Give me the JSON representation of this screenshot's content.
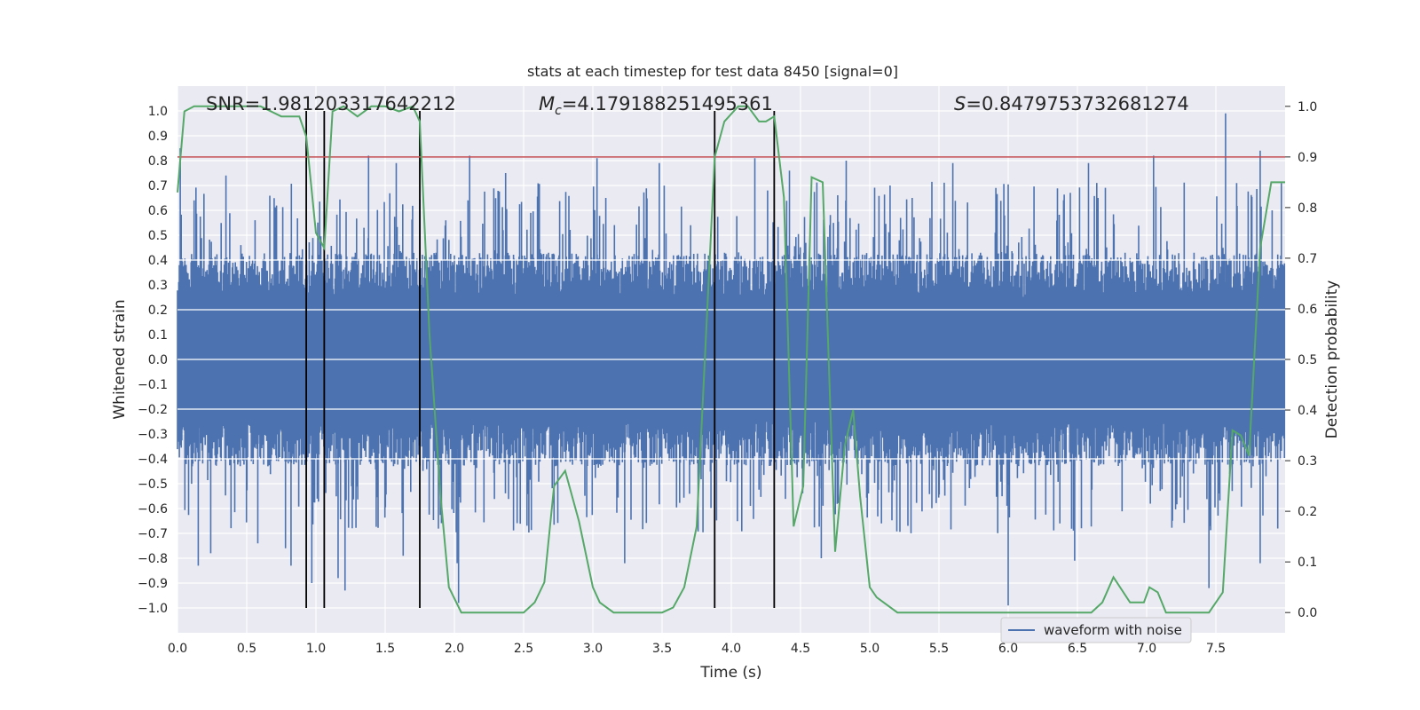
{
  "chart_data": {
    "type": "line",
    "title": "stats at each timestep for test data 8450 [signal=0]",
    "xlabel": "Time (s)",
    "ylabel": "Whitened strain",
    "y2label": "Detection probability",
    "xlim": [
      0.0,
      8.0
    ],
    "ylim": [
      -1.1,
      1.1
    ],
    "y2lim": [
      -0.04,
      1.04
    ],
    "xticks": [
      0.0,
      0.5,
      1.0,
      1.5,
      2.0,
      2.5,
      3.0,
      3.5,
      4.0,
      4.5,
      5.0,
      5.5,
      6.0,
      6.5,
      7.0,
      7.5
    ],
    "xtick_labels": [
      "0.0",
      "0.5",
      "1.0",
      "1.5",
      "2.0",
      "2.5",
      "3.0",
      "3.5",
      "4.0",
      "4.5",
      "5.0",
      "5.5",
      "6.0",
      "6.5",
      "7.0",
      "7.5"
    ],
    "yticks": [
      1.0,
      0.9,
      0.8,
      0.7,
      0.6,
      0.5,
      0.4,
      0.3,
      0.2,
      0.1,
      0.0,
      -0.1,
      -0.2,
      -0.3,
      -0.4,
      -0.5,
      -0.6,
      -0.7,
      -0.8,
      -0.9,
      -1.0
    ],
    "ytick_labels": [
      "1.0",
      "0.9",
      "0.8",
      "0.7",
      "0.6",
      "0.5",
      "0.4",
      "0.3",
      "0.2",
      "0.1",
      "0.0",
      "−0.1",
      "−0.2",
      "−0.3",
      "−0.4",
      "−0.5",
      "−0.6",
      "−0.7",
      "−0.8",
      "−0.9",
      "−1.0"
    ],
    "y2ticks": [
      1.0,
      0.9,
      0.8,
      0.7,
      0.6,
      0.5,
      0.4,
      0.3,
      0.2,
      0.1,
      0.0
    ],
    "y2tick_labels": [
      "1.0",
      "0.9",
      "0.8",
      "0.7",
      "0.6",
      "0.5",
      "0.4",
      "0.3",
      "0.2",
      "0.1",
      "0.0"
    ],
    "grid": true,
    "annotations": {
      "snr": "SNR=1.981203317642212",
      "mc_symbol": "M",
      "mc_sub": "c",
      "mc_value": "=4.179188251495361",
      "s_symbol": "S",
      "s_value": "=0.8479753732681274"
    },
    "legend": {
      "placement": "bottom-right",
      "entries": [
        "waveform with noise"
      ]
    },
    "threshold": {
      "value": 0.9,
      "axis": "right",
      "color": "#c44e52"
    },
    "vertical_markers": {
      "x": [
        0.93,
        1.06,
        1.75,
        3.88,
        4.31
      ],
      "y_range": [
        -1.0,
        1.0
      ],
      "color": "#000000"
    },
    "series": [
      {
        "name": "waveform with noise",
        "axis": "left",
        "color": "#4c72b0",
        "description": "dense whitened noise, mostly within ±0.4 with spikes",
        "spikes": [
          {
            "t": 0.02,
            "v": 0.85
          },
          {
            "t": 0.12,
            "v": 0.64
          },
          {
            "t": 0.15,
            "v": -0.83
          },
          {
            "t": 0.24,
            "v": -0.78
          },
          {
            "t": 0.35,
            "v": 0.74
          },
          {
            "t": 0.58,
            "v": -0.74
          },
          {
            "t": 0.78,
            "v": -0.76
          },
          {
            "t": 0.82,
            "v": -0.83
          },
          {
            "t": 0.97,
            "v": -0.9
          },
          {
            "t": 1.16,
            "v": -0.88
          },
          {
            "t": 1.21,
            "v": -0.93
          },
          {
            "t": 1.38,
            "v": 0.82
          },
          {
            "t": 1.58,
            "v": 0.79
          },
          {
            "t": 1.63,
            "v": -0.79
          },
          {
            "t": 2.03,
            "v": -0.98
          },
          {
            "t": 2.11,
            "v": 0.82
          },
          {
            "t": 2.02,
            "v": -0.82
          },
          {
            "t": 2.37,
            "v": 0.75
          },
          {
            "t": 3.03,
            "v": 0.81
          },
          {
            "t": 3.23,
            "v": -0.82
          },
          {
            "t": 3.48,
            "v": 0.79
          },
          {
            "t": 4.17,
            "v": 0.81
          },
          {
            "t": 4.42,
            "v": 0.76
          },
          {
            "t": 4.65,
            "v": -0.8
          },
          {
            "t": 4.83,
            "v": 0.8
          },
          {
            "t": 5.6,
            "v": 0.79
          },
          {
            "t": 6.0,
            "v": -0.99
          },
          {
            "t": 6.48,
            "v": -0.81
          },
          {
            "t": 6.58,
            "v": 0.79
          },
          {
            "t": 7.05,
            "v": 0.82
          },
          {
            "t": 7.45,
            "v": -0.92
          },
          {
            "t": 7.57,
            "v": 0.99
          },
          {
            "t": 7.65,
            "v": 0.71
          },
          {
            "t": 7.82,
            "v": 0.84
          },
          {
            "t": 7.82,
            "v": -0.82
          }
        ]
      },
      {
        "name": "detection probability",
        "axis": "right",
        "color": "#55a868",
        "x": [
          0.0,
          0.05,
          0.12,
          0.3,
          0.6,
          0.75,
          0.88,
          0.93,
          1.0,
          1.06,
          1.12,
          1.2,
          1.3,
          1.4,
          1.5,
          1.6,
          1.7,
          1.75,
          1.82,
          1.9,
          1.96,
          2.05,
          2.3,
          2.5,
          2.58,
          2.65,
          2.72,
          2.8,
          2.9,
          3.0,
          3.05,
          3.15,
          3.3,
          3.5,
          3.58,
          3.66,
          3.75,
          3.88,
          3.95,
          4.05,
          4.12,
          4.2,
          4.25,
          4.31,
          4.38,
          4.45,
          4.52,
          4.58,
          4.66,
          4.75,
          4.82,
          4.88,
          4.93,
          5.0,
          5.05,
          5.2,
          5.5,
          5.8,
          6.0,
          6.2,
          6.4,
          6.6,
          6.68,
          6.76,
          6.88,
          6.98,
          7.02,
          7.08,
          7.14,
          7.2,
          7.3,
          7.45,
          7.55,
          7.62,
          7.68,
          7.74,
          7.82,
          7.9,
          8.0
        ],
        "y": [
          0.83,
          0.99,
          1.0,
          1.0,
          1.0,
          0.98,
          0.98,
          0.94,
          0.75,
          0.72,
          0.99,
          1.0,
          0.98,
          1.0,
          1.0,
          0.99,
          1.0,
          0.97,
          0.55,
          0.23,
          0.05,
          0.0,
          0.0,
          0.0,
          0.02,
          0.06,
          0.25,
          0.28,
          0.18,
          0.05,
          0.02,
          0.0,
          0.0,
          0.0,
          0.01,
          0.05,
          0.17,
          0.9,
          0.97,
          1.0,
          1.0,
          0.97,
          0.97,
          0.98,
          0.82,
          0.17,
          0.25,
          0.86,
          0.85,
          0.12,
          0.33,
          0.4,
          0.23,
          0.05,
          0.03,
          0.0,
          0.0,
          0.0,
          0.0,
          0.0,
          0.0,
          0.0,
          0.02,
          0.07,
          0.02,
          0.02,
          0.05,
          0.04,
          0.0,
          0.0,
          0.0,
          0.0,
          0.04,
          0.36,
          0.35,
          0.31,
          0.72,
          0.85,
          0.85
        ]
      }
    ]
  }
}
